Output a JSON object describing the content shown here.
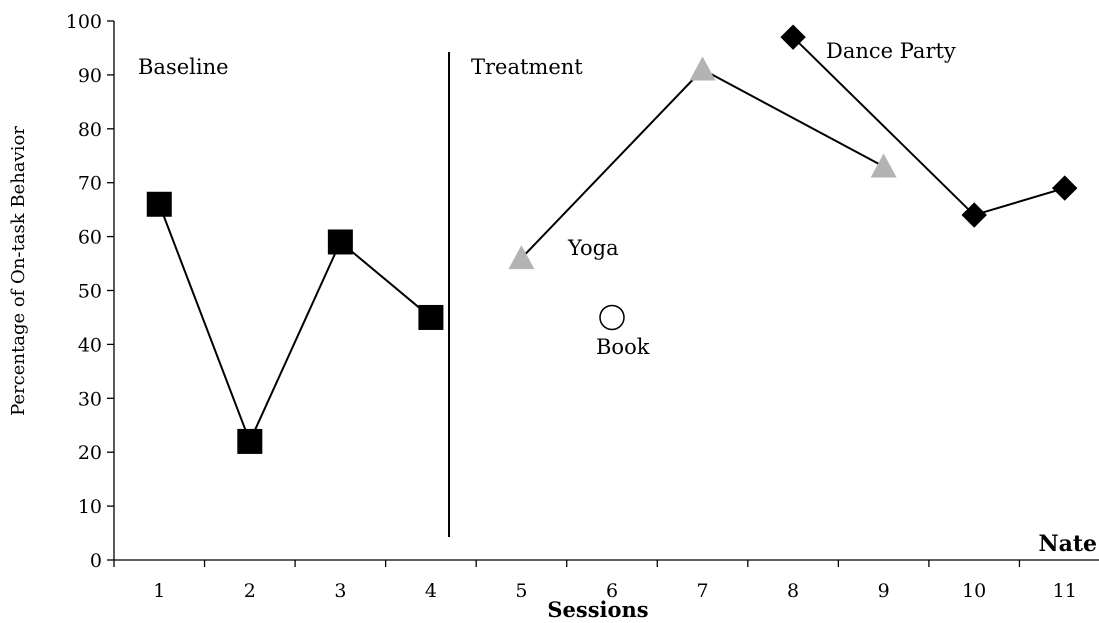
{
  "chart_data": {
    "type": "line",
    "xlabel": "Sessions",
    "ylabel": "Percentage of On-task Behavior",
    "panel_label": "Nate",
    "x_ticks": [
      "1",
      "2",
      "3",
      "4",
      "5",
      "6",
      "7",
      "8",
      "9",
      "10",
      "11"
    ],
    "y_ticks": [
      "0",
      "10",
      "20",
      "30",
      "40",
      "50",
      "60",
      "70",
      "80",
      "90",
      "100"
    ],
    "xlim": [
      0.5,
      11.5
    ],
    "ylim": [
      0,
      100
    ],
    "phase_change_after_session": 4,
    "phases": [
      {
        "label": "Baseline"
      },
      {
        "label": "Treatment"
      }
    ],
    "series": [
      {
        "name": "Baseline",
        "marker": "square",
        "color": "#000000",
        "connected": true,
        "points": [
          {
            "x": 1,
            "y": 66
          },
          {
            "x": 2,
            "y": 22
          },
          {
            "x": 3,
            "y": 59
          },
          {
            "x": 4,
            "y": 45
          }
        ]
      },
      {
        "name": "Yoga",
        "marker": "triangle",
        "color": "#b3b3b3",
        "connected": true,
        "points": [
          {
            "x": 5,
            "y": 56
          },
          {
            "x": 7,
            "y": 91
          },
          {
            "x": 9,
            "y": 73
          }
        ]
      },
      {
        "name": "Book",
        "marker": "circle",
        "color": "#ffffff",
        "connected": false,
        "points": [
          {
            "x": 6,
            "y": 45
          }
        ]
      },
      {
        "name": "Dance Party",
        "marker": "diamond",
        "color": "#000000",
        "connected": true,
        "points": [
          {
            "x": 8,
            "y": 97
          },
          {
            "x": 10,
            "y": 64
          },
          {
            "x": 11,
            "y": 69
          }
        ]
      }
    ],
    "grid": false,
    "legend": "none"
  }
}
